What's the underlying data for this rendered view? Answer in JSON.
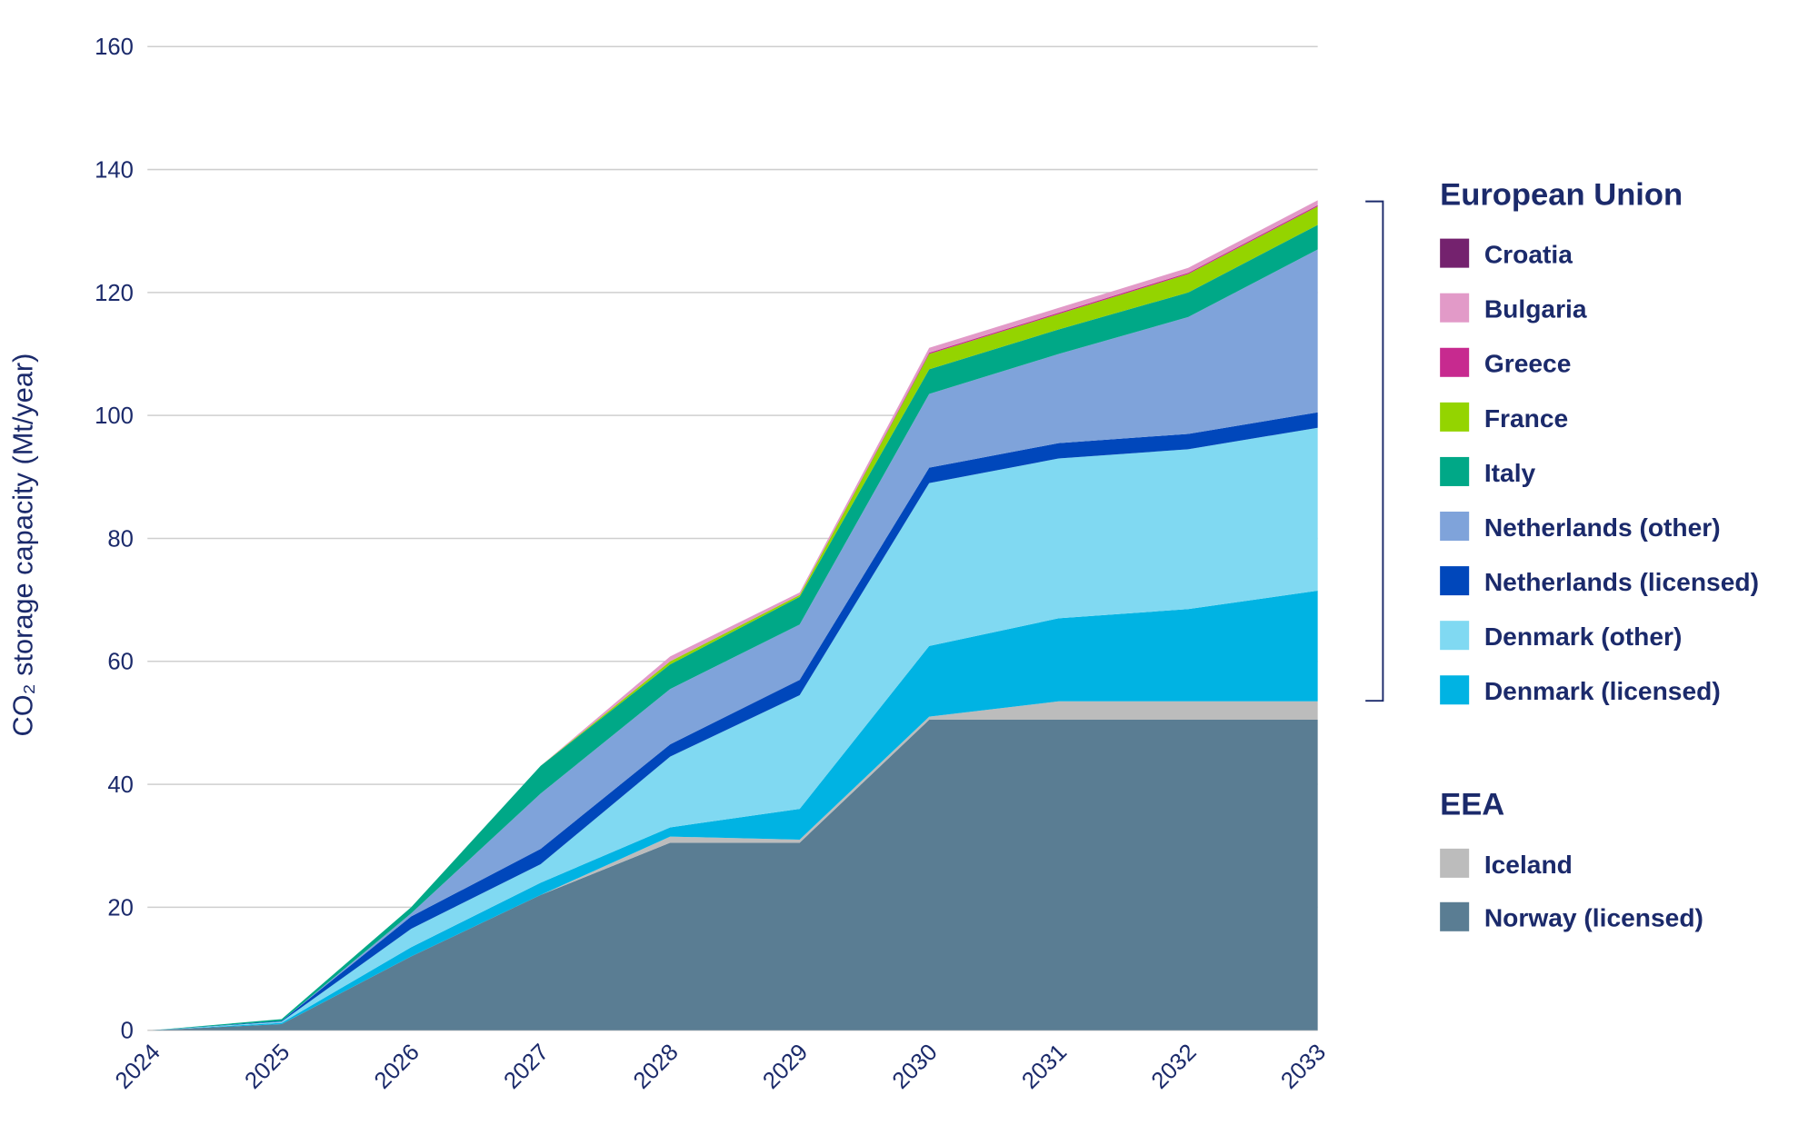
{
  "chart_data": {
    "type": "area",
    "stacked": true,
    "title": "",
    "xlabel": "",
    "ylabel": "CO₂ storage capacity (Mt/year)",
    "ylim": [
      0,
      160
    ],
    "yticks": [
      0,
      20,
      40,
      60,
      80,
      100,
      120,
      140,
      160
    ],
    "grid": true,
    "legend_placement": "right",
    "categories": [
      "2024",
      "2025",
      "2026",
      "2027",
      "2028",
      "2029",
      "2030",
      "2031",
      "2032",
      "2033"
    ],
    "series": [
      {
        "name": "Norway (licensed)",
        "group": "EEA",
        "color": "#5a7d93",
        "values": [
          0,
          1,
          12,
          22,
          30.5,
          30.5,
          50.5,
          50.5,
          50.5,
          50.5
        ]
      },
      {
        "name": "Iceland",
        "group": "EEA",
        "color": "#bcbcbc",
        "values": [
          0,
          0,
          0,
          0,
          1,
          0.5,
          0.5,
          3,
          3,
          3
        ]
      },
      {
        "name": "Denmark (licensed)",
        "group": "European Union",
        "color": "#00b3e3",
        "values": [
          0,
          0.2,
          1.5,
          2,
          1.5,
          5,
          11.5,
          13.5,
          15,
          18
        ]
      },
      {
        "name": "Denmark (other)",
        "group": "European Union",
        "color": "#80d9f2",
        "values": [
          0,
          0.2,
          3,
          3,
          11.5,
          18.5,
          26.5,
          26,
          26,
          26.5
        ]
      },
      {
        "name": "Netherlands (licensed)",
        "group": "European Union",
        "color": "#0047bb",
        "values": [
          0,
          0.1,
          2,
          2.5,
          2,
          2.5,
          2.5,
          2.5,
          2.5,
          2.5
        ]
      },
      {
        "name": "Netherlands (other)",
        "group": "European Union",
        "color": "#7fa3da",
        "values": [
          0,
          0,
          0.5,
          9,
          9,
          9,
          12,
          14.5,
          19,
          26.5
        ]
      },
      {
        "name": "Italy",
        "group": "European Union",
        "color": "#00a887",
        "values": [
          0,
          0.3,
          1,
          4.5,
          4,
          4.5,
          4,
          4,
          4,
          4
        ]
      },
      {
        "name": "France",
        "group": "European Union",
        "color": "#94d400",
        "values": [
          0,
          0,
          0,
          0,
          0.5,
          0.3,
          2.5,
          2.5,
          3,
          3
        ]
      },
      {
        "name": "Greece",
        "group": "European Union",
        "color": "#c72a8f",
        "values": [
          0,
          0,
          0,
          0,
          0,
          0,
          0.2,
          0.2,
          0.2,
          0.2
        ]
      },
      {
        "name": "Bulgaria",
        "group": "European Union",
        "color": "#e29ac8",
        "values": [
          0,
          0,
          0,
          0,
          0.8,
          0.4,
          0.8,
          0.8,
          0.8,
          0.8
        ]
      },
      {
        "name": "Croatia",
        "group": "European Union",
        "color": "#74226e",
        "values": [
          0,
          0,
          0,
          0,
          0,
          0,
          0,
          0,
          0,
          0
        ]
      }
    ],
    "legend": {
      "groups": [
        {
          "title": "European Union",
          "items": [
            "Croatia",
            "Bulgaria",
            "Greece",
            "France",
            "Italy",
            "Netherlands (other)",
            "Netherlands (licensed)",
            "Denmark (other)",
            "Denmark (licensed)"
          ]
        },
        {
          "title": "EEA",
          "items": [
            "Iceland",
            "Norway (licensed)"
          ]
        }
      ]
    }
  }
}
